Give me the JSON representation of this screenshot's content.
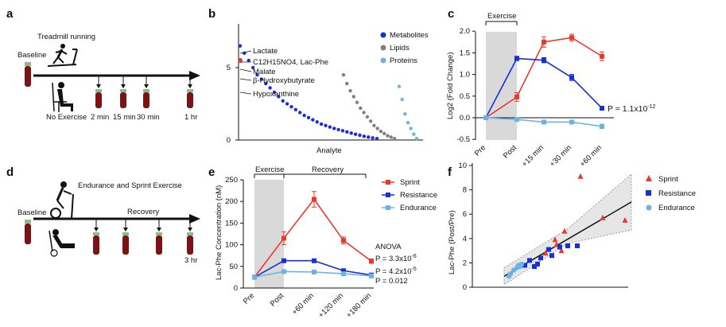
{
  "panels": {
    "a": {
      "label": "a",
      "treadmill_label": "Treadmill running",
      "baseline_label": "Baseline",
      "no_exercise_label": "No Exercise",
      "timepoints": [
        "2 min",
        "15 min",
        "30 min",
        "1 hr"
      ]
    },
    "b": {
      "label": "b",
      "annotations": [
        "Lactate",
        "C12H15NO4, Lac-Phe",
        "Malate",
        "β-Hydroxybutyrate",
        "Hypoxanthine"
      ],
      "legend": [
        "Metabolites",
        "Lipids",
        "Proteins"
      ],
      "ytick_labels": [
        "0",
        "5"
      ],
      "xlabel": "Analyte"
    },
    "c": {
      "label": "c",
      "exercise_label": "Exercise",
      "ylabel": "Log2 (Fold Change)",
      "p_annotation": "P = 1.1x10",
      "p_exponent": "-12"
    },
    "d": {
      "label": "d",
      "baseline_label": "Baseline",
      "exercise_label": "Endurance and Sprint Exercise",
      "recovery_label": "Recovery",
      "end_label": "3 hr"
    },
    "e": {
      "label": "e",
      "exercise_label": "Exercise",
      "recovery_label": "Recovery",
      "ylabel": "Lac-Phe Concentration (nM)",
      "anova_label": "ANOVA",
      "p_values": [
        "P = 3.3x10",
        "P = 4.2x10",
        "P = 0.012"
      ],
      "p_exponents": [
        "-6",
        "-5",
        ""
      ]
    },
    "f": {
      "label": "f",
      "ylabel": "Lac-Phe (Post/Pre)"
    }
  },
  "colors": {
    "sprint": "#e8392b",
    "resistance": "#1530d8",
    "endurance": "#6bb3e4",
    "metabolites": "#1a2ed6",
    "lipids": "#808080",
    "proteins": "#6bb3e4",
    "tube": "#7a1414",
    "shade": "#d9d9d9"
  },
  "chart_data": [
    {
      "panel": "b",
      "type": "scatter",
      "xlabel": "Analyte",
      "ylabel": "",
      "yticks": [
        0,
        5
      ],
      "series": [
        {
          "name": "Metabolites",
          "values": [
            6.5,
            6.0,
            5.5,
            5.0,
            4.5,
            4.2,
            3.9,
            3.6,
            3.3,
            3.0,
            2.7,
            2.5,
            2.3,
            2.1,
            1.9,
            1.7,
            1.55,
            1.4,
            1.25,
            1.1,
            1.0,
            0.9,
            0.8,
            0.72,
            0.64,
            0.56,
            0.48,
            0.4,
            0.33,
            0.26,
            0.2,
            0.15,
            0.1
          ]
        },
        {
          "name": "Lipids",
          "values": [
            4.5,
            3.9,
            3.4,
            3.0,
            2.6,
            2.2,
            1.9,
            1.6,
            1.3,
            1.0,
            0.8,
            0.6,
            0.45,
            0.3,
            0.2,
            0.1
          ]
        },
        {
          "name": "Proteins",
          "values": [
            3.7,
            2.8,
            1.8,
            1.2,
            0.8,
            0.4,
            0.1
          ]
        }
      ]
    },
    {
      "panel": "c",
      "type": "line",
      "categories": [
        "Pre",
        "Post",
        "+15 min",
        "+30 min",
        "+60 min"
      ],
      "ylabel": "Log2 (Fold Change)",
      "ylim": [
        -0.5,
        2.0
      ],
      "yticks": [
        -0.5,
        0.0,
        0.5,
        1.0,
        1.5,
        2.0
      ],
      "series": [
        {
          "values": [
            0,
            0.48,
            1.75,
            1.85,
            1.42
          ],
          "errors": [
            0,
            0.1,
            0.12,
            0.08,
            0.1
          ]
        },
        {
          "values": [
            0,
            1.37,
            1.33,
            0.93,
            0.22
          ],
          "errors": [
            0,
            0.05,
            0.06,
            0.07,
            0.04
          ]
        },
        {
          "values": [
            0,
            -0.04,
            -0.1,
            -0.1,
            -0.2
          ],
          "errors": [
            0,
            0.02,
            0.04,
            0.04,
            0.05
          ]
        }
      ]
    },
    {
      "panel": "e",
      "type": "line",
      "categories": [
        "Pre",
        "Post",
        "+60 min",
        "+120 min",
        "+180 min"
      ],
      "ylabel": "Lac-Phe Concentration (nM)",
      "ylim": [
        0,
        250
      ],
      "yticks": [
        0,
        50,
        100,
        150,
        200,
        250
      ],
      "series": [
        {
          "name": "Sprint",
          "values": [
            25,
            115,
            205,
            110,
            62
          ],
          "errors": [
            0,
            15,
            18,
            8,
            5
          ]
        },
        {
          "name": "Resistance",
          "values": [
            25,
            63,
            63,
            40,
            30
          ],
          "errors": [
            0,
            4,
            4,
            3,
            2
          ]
        },
        {
          "name": "Endurance",
          "values": [
            25,
            38,
            37,
            33,
            28
          ],
          "errors": [
            0,
            3,
            4,
            3,
            2
          ]
        }
      ]
    },
    {
      "panel": "f",
      "type": "scatter",
      "xlim": [
        0,
        10
      ],
      "ylim": [
        0,
        10
      ],
      "yticks": [
        0,
        2,
        4,
        6,
        8,
        10
      ],
      "ylabel": "Lac-Phe (Post/Pre)",
      "series": [
        {
          "name": "Sprint",
          "points": [
            [
              6.8,
              9.1
            ],
            [
              8.2,
              5.7
            ],
            [
              9.6,
              5.5
            ],
            [
              5.2,
              3.9
            ],
            [
              5.3,
              3.5
            ],
            [
              5.8,
              4.6
            ],
            [
              5.6,
              3.0
            ],
            [
              4.6,
              2.8
            ]
          ]
        },
        {
          "name": "Resistance",
          "points": [
            [
              3.3,
              1.8
            ],
            [
              3.6,
              2.2
            ],
            [
              3.9,
              1.7
            ],
            [
              4.1,
              1.9
            ],
            [
              4.3,
              2.4
            ],
            [
              4.8,
              3.1
            ],
            [
              5.0,
              2.6
            ],
            [
              5.5,
              3.3
            ],
            [
              6.0,
              3.4
            ],
            [
              6.6,
              3.4
            ]
          ]
        },
        {
          "name": "Endurance",
          "points": [
            [
              2.3,
              0.9
            ],
            [
              2.4,
              1.1
            ],
            [
              2.6,
              1.4
            ],
            [
              2.8,
              1.6
            ],
            [
              2.9,
              1.8
            ],
            [
              3.0,
              1.7
            ],
            [
              3.1,
              1.9
            ]
          ]
        }
      ],
      "fit": {
        "x": [
          2.0,
          10.0
        ],
        "y": [
          0.9,
          7.0
        ]
      }
    }
  ]
}
